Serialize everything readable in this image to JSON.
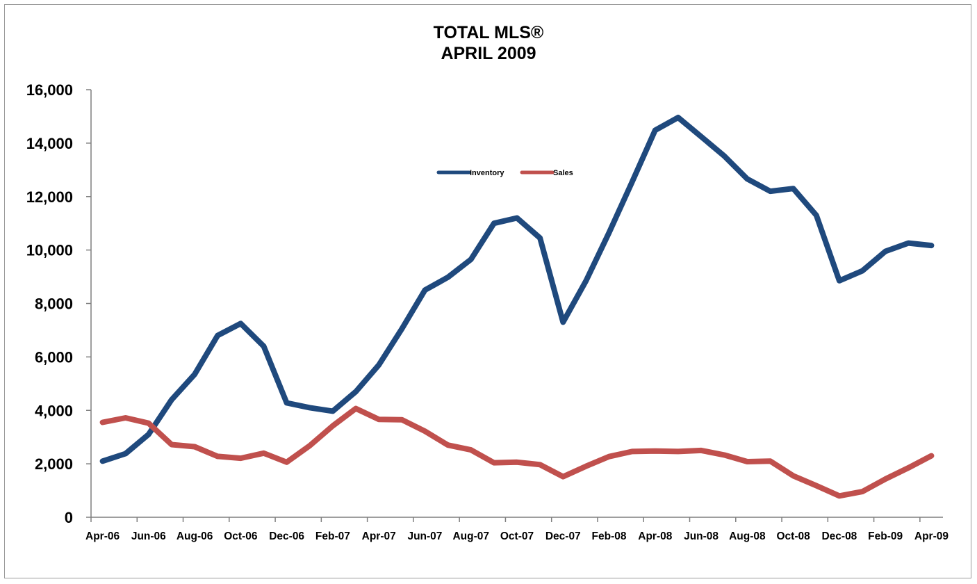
{
  "chart_data": {
    "type": "line",
    "title": "TOTAL MLS®",
    "subtitle": "APRIL 2009",
    "xlabel": "",
    "ylabel": "",
    "ylim": [
      0,
      16000
    ],
    "yticks": [
      "0",
      "2,000",
      "4,000",
      "6,000",
      "8,000",
      "10,000",
      "12,000",
      "14,000",
      "16,000"
    ],
    "ytick_values": [
      0,
      2000,
      4000,
      6000,
      8000,
      10000,
      12000,
      14000,
      16000
    ],
    "x": [
      "Apr-06",
      "May-06",
      "Jun-06",
      "Jul-06",
      "Aug-06",
      "Sep-06",
      "Oct-06",
      "Nov-06",
      "Dec-06",
      "Jan-07",
      "Feb-07",
      "Mar-07",
      "Apr-07",
      "May-07",
      "Jun-07",
      "Jul-07",
      "Aug-07",
      "Sep-07",
      "Oct-07",
      "Nov-07",
      "Dec-07",
      "Jan-08",
      "Feb-08",
      "Mar-08",
      "Apr-08",
      "May-08",
      "Jun-08",
      "Jul-08",
      "Aug-08",
      "Sep-08",
      "Oct-08",
      "Nov-08",
      "Dec-08",
      "Jan-09",
      "Feb-09",
      "Mar-09",
      "Apr-09"
    ],
    "xtick_labels": [
      "Apr-06",
      "Jun-06",
      "Aug-06",
      "Oct-06",
      "Dec-06",
      "Feb-07",
      "Apr-07",
      "Jun-07",
      "Aug-07",
      "Oct-07",
      "Dec-07",
      "Feb-08",
      "Apr-08",
      "Jun-08",
      "Aug-08",
      "Oct-08",
      "Dec-08",
      "Feb-09",
      "Apr-09"
    ],
    "grid": false,
    "legend_position": "top-center",
    "series": [
      {
        "name": "Inventory",
        "color": "#1f497d",
        "values": [
          2100,
          2380,
          3100,
          4400,
          5350,
          6800,
          7250,
          6400,
          4280,
          4100,
          3970,
          4700,
          5700,
          7050,
          8500,
          8980,
          9650,
          11000,
          11200,
          10450,
          7300,
          8850,
          10650,
          12550,
          14480,
          14960,
          14240,
          13520,
          12660,
          12200,
          12300,
          11300,
          8850,
          9220,
          9950,
          10260,
          10170
        ]
      },
      {
        "name": "Sales",
        "color": "#c0504d",
        "values": [
          3550,
          3720,
          3520,
          2720,
          2640,
          2280,
          2210,
          2400,
          2060,
          2680,
          3420,
          4070,
          3660,
          3650,
          3220,
          2700,
          2520,
          2040,
          2060,
          1970,
          1520,
          1910,
          2270,
          2460,
          2480,
          2460,
          2500,
          2330,
          2080,
          2100,
          1550,
          1180,
          800,
          960,
          1430,
          1850,
          2300
        ]
      }
    ]
  }
}
